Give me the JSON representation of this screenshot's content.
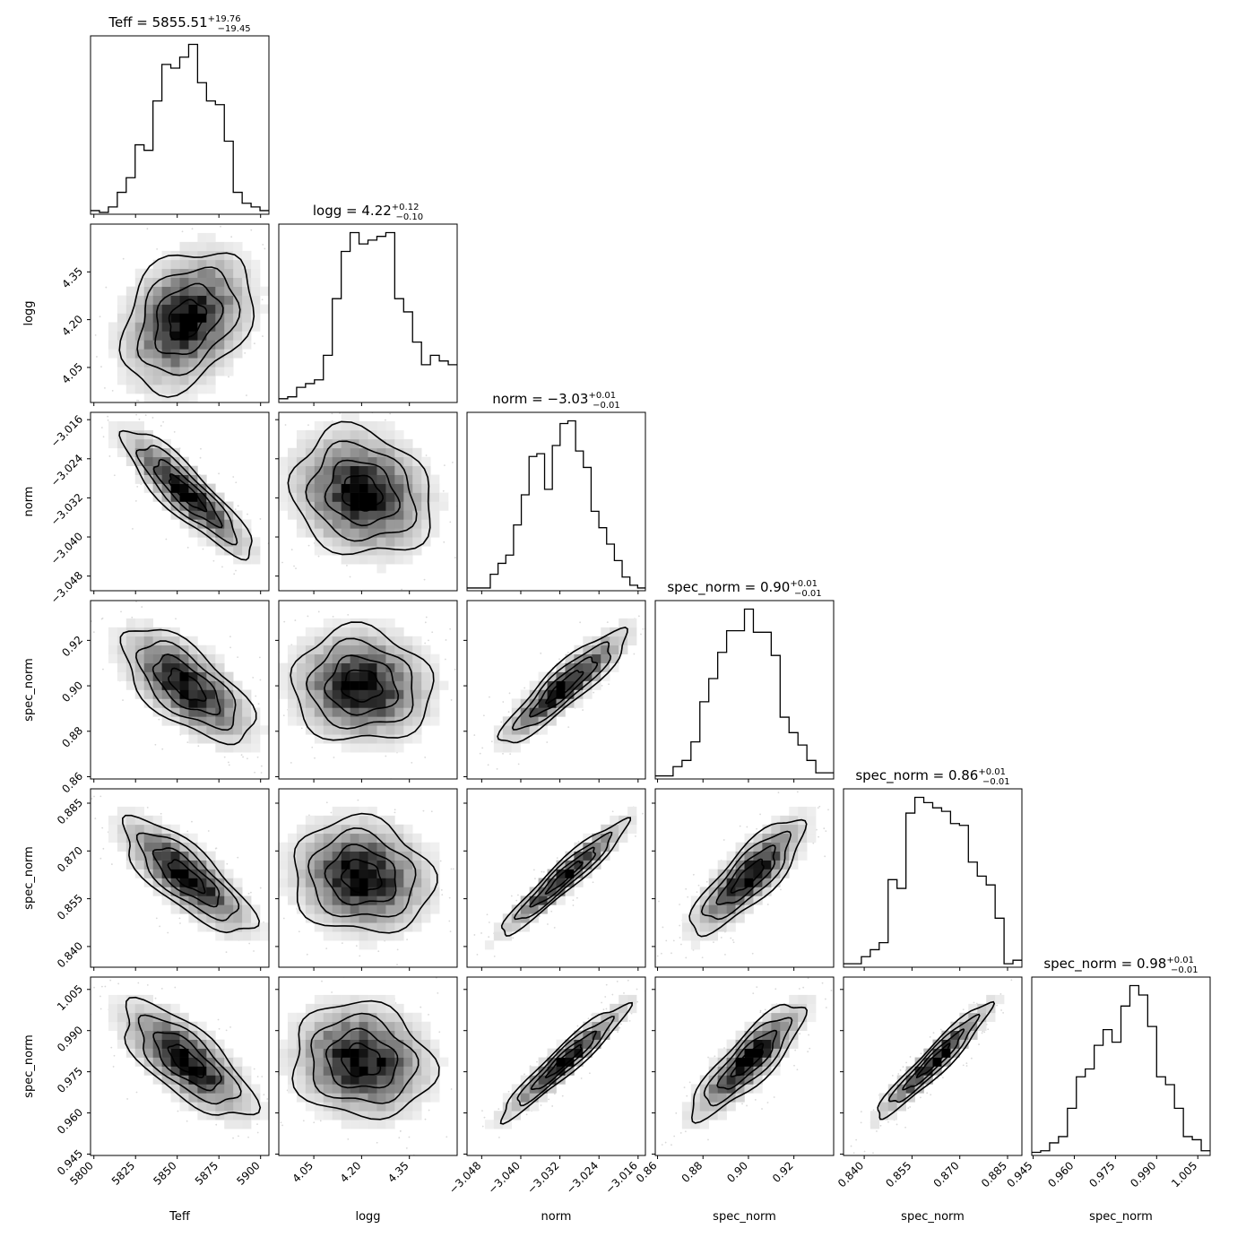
{
  "chart_data": {
    "type": "corner",
    "parameters": [
      {
        "label": "Teff",
        "title": {
          "prefix": "Teff = ",
          "value": "5855.51",
          "upper": "+19.76",
          "lower": "−19.45"
        },
        "range": [
          5798,
          5905
        ],
        "ticks": [
          5800,
          5825,
          5850,
          5875,
          5900
        ],
        "tick_labels": [
          "5800",
          "5825",
          "5850",
          "5875",
          "5900"
        ],
        "hist_counts": [
          2,
          1,
          4,
          12,
          20,
          38,
          35,
          62,
          82,
          80,
          86,
          93,
          72,
          62,
          60,
          40,
          12,
          6,
          4,
          2
        ]
      },
      {
        "label": "logg",
        "title": {
          "prefix": "logg = ",
          "value": "4.22",
          "upper": "+0.12",
          "lower": "−0.10"
        },
        "range": [
          3.94,
          4.5
        ],
        "ticks": [
          4.05,
          4.2,
          4.35
        ],
        "tick_labels": [
          "4.05",
          "4.20",
          "4.35"
        ],
        "hist_counts": [
          2,
          3,
          8,
          10,
          12,
          25,
          55,
          80,
          90,
          84,
          86,
          88,
          90,
          55,
          48,
          32,
          20,
          25,
          22,
          20
        ]
      },
      {
        "label": "norm",
        "title": {
          "prefix": "norm = ",
          "value": "−3.03",
          "upper": "+0.01",
          "lower": "−0.01"
        },
        "range": [
          -3.051,
          -3.0145
        ],
        "ticks": [
          -3.048,
          -3.04,
          -3.032,
          -3.024,
          -3.016
        ],
        "tick_labels": [
          "−3.048",
          "−3.040",
          "−3.032",
          "−3.024",
          "−3.016"
        ],
        "hist_counts": [
          1,
          1,
          1,
          6,
          10,
          13,
          24,
          35,
          49,
          50,
          37,
          53,
          61,
          62,
          51,
          45,
          29,
          23,
          17,
          11,
          5,
          2,
          1
        ]
      },
      {
        "label": "spec_norm",
        "title": {
          "prefix": "spec_norm = ",
          "value": "0.90",
          "upper": "+0.01",
          "lower": "−0.01"
        },
        "range": [
          0.859,
          0.9375
        ],
        "ticks": [
          0.86,
          0.88,
          0.9,
          0.92
        ],
        "tick_labels": [
          "0.86",
          "0.88",
          "0.90",
          "0.92"
        ],
        "hist_counts": [
          2,
          2,
          8,
          12,
          24,
          50,
          65,
          82,
          96,
          96,
          110,
          95,
          95,
          80,
          40,
          30,
          22,
          12,
          4,
          4
        ]
      },
      {
        "label": "spec_norm",
        "title": {
          "prefix": "spec_norm = ",
          "value": "0.86",
          "upper": "+0.01",
          "lower": "−0.01"
        },
        "range": [
          0.8335,
          0.8895
        ],
        "ticks": [
          0.84,
          0.855,
          0.87,
          0.885
        ],
        "tick_labels": [
          "0.840",
          "0.855",
          "0.870",
          "0.885"
        ],
        "hist_counts": [
          2,
          2,
          6,
          10,
          14,
          50,
          45,
          88,
          97,
          94,
          91,
          89,
          82,
          81,
          60,
          52,
          47,
          28,
          2,
          4
        ]
      },
      {
        "label": "spec_norm",
        "title": {
          "prefix": "spec_norm = ",
          "value": "0.98",
          "upper": "+0.01",
          "lower": "−0.01"
        },
        "range": [
          0.9445,
          1.0095
        ],
        "ticks": [
          0.945,
          0.96,
          0.975,
          0.99,
          1.005
        ],
        "tick_labels": [
          "0.945",
          "0.960",
          "0.975",
          "0.990",
          "1.005"
        ],
        "hist_counts": [
          2,
          3,
          8,
          12,
          30,
          50,
          55,
          70,
          80,
          72,
          95,
          108,
          102,
          82,
          50,
          45,
          30,
          12,
          10,
          3
        ]
      }
    ],
    "correlations": [
      [
        1,
        0.3,
        -0.88,
        -0.65,
        -0.78,
        -0.72
      ],
      [
        0.3,
        1,
        -0.15,
        -0.05,
        -0.1,
        -0.1
      ],
      [
        -0.88,
        -0.15,
        1,
        0.9,
        0.95,
        0.95
      ],
      [
        -0.65,
        -0.05,
        0.9,
        1,
        0.82,
        0.85
      ],
      [
        -0.78,
        -0.1,
        0.95,
        0.82,
        1,
        0.95
      ],
      [
        -0.72,
        -0.1,
        0.95,
        0.85,
        0.95,
        1
      ]
    ],
    "centers": [
      5855.51,
      4.2,
      -3.031,
      0.9,
      0.862,
      0.979
    ],
    "spreads": [
      19.6,
      0.11,
      0.0065,
      0.0125,
      0.009,
      0.0105
    ],
    "grid": false,
    "legend": "none"
  }
}
